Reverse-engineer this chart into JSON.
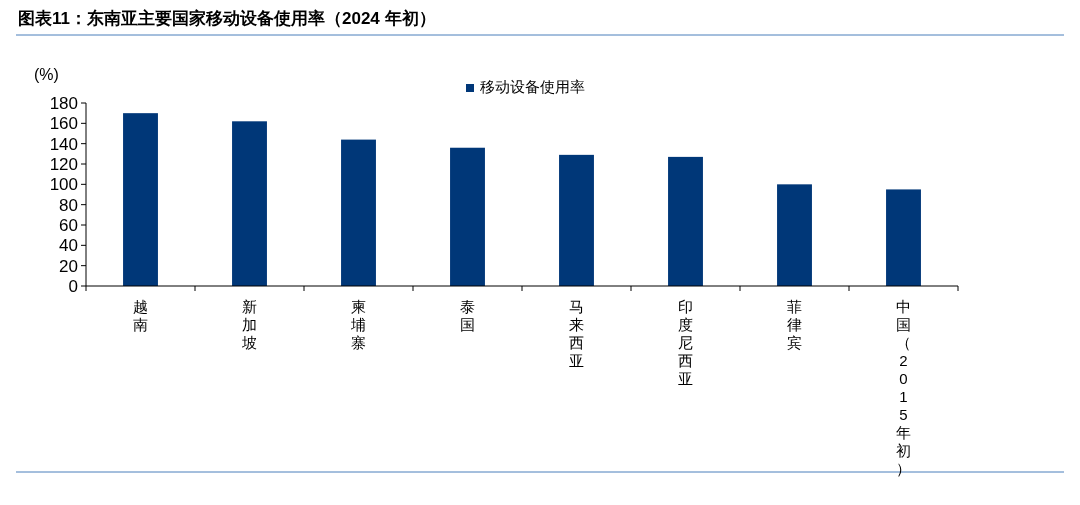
{
  "chart_data": {
    "type": "bar",
    "title": "图表11：东南亚主要国家移动设备使用率（2024 年初）",
    "ylabel": "(%)",
    "categories": [
      "越南",
      "新加坡",
      "柬埔寨",
      "泰国",
      "马来西亚",
      "印度尼西亚",
      "菲律宾",
      "中国（2015年初）"
    ],
    "series": [
      {
        "name": "移动设备使用率",
        "color": "#003778",
        "values": [
          170,
          162,
          144,
          136,
          129,
          127,
          100,
          95
        ]
      }
    ],
    "ylim": [
      0,
      180
    ],
    "yticks": [
      0,
      20,
      40,
      60,
      80,
      100,
      120,
      140,
      160,
      180
    ],
    "grid": false,
    "legend": "top"
  }
}
